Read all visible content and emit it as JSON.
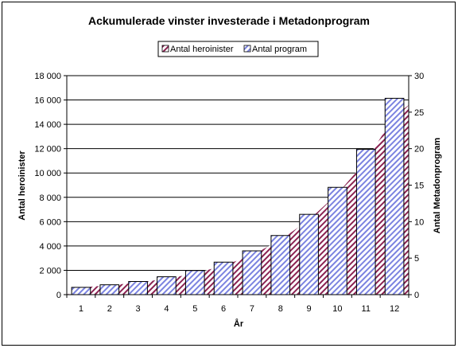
{
  "chart_data": {
    "type": "bar",
    "title": "Ackumulerade vinster investerade i Metadonprogram",
    "xlabel": "År",
    "ylabel": "Antal heroinister",
    "y2label": "Antal Metadonprogram",
    "categories": [
      "1",
      "2",
      "3",
      "4",
      "5",
      "6",
      "7",
      "8",
      "9",
      "10",
      "11",
      "12"
    ],
    "ylim": [
      0,
      18000
    ],
    "y2lim": [
      0,
      30
    ],
    "yticks": [
      "0",
      "2 000",
      "4 000",
      "6 000",
      "8 000",
      "10 000",
      "12 000",
      "14 000",
      "16 000",
      "18 000"
    ],
    "y2ticks": [
      "0",
      "5",
      "10",
      "15",
      "20",
      "25",
      "30"
    ],
    "grid": true,
    "legend_position": "top",
    "series": [
      {
        "name": "Antal heroinister",
        "kind": "area",
        "axis": "left",
        "color": "#8b2252",
        "values": [
          600,
          760,
          1000,
          1300,
          1750,
          2380,
          3250,
          4500,
          6150,
          8300,
          11000,
          14700
        ]
      },
      {
        "name": "Antal program",
        "kind": "bar",
        "axis": "right",
        "color": "#7b83e0",
        "values": [
          1,
          1.35,
          1.8,
          2.45,
          3.3,
          4.45,
          6,
          8.1,
          11,
          14.7,
          19.9,
          26.9
        ]
      }
    ]
  }
}
